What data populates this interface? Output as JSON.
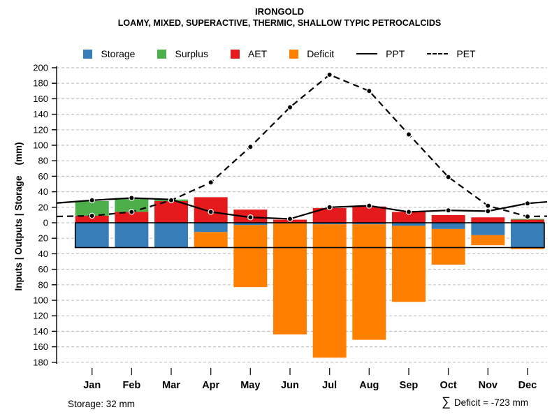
{
  "header": {
    "title": "IRONGOLD",
    "subtitle": "LOAMY, MIXED, SUPERACTIVE, THERMIC, SHALLOW TYPIC PETROCALCIDS"
  },
  "legend": {
    "items": [
      {
        "label": "Storage",
        "color": "#377EB8"
      },
      {
        "label": "Surplus",
        "color": "#4DAF4A"
      },
      {
        "label": "AET",
        "color": "#E41A1C"
      },
      {
        "label": "Deficit",
        "color": "#FF7F00"
      }
    ],
    "lines": [
      {
        "label": "PPT",
        "style": "solid"
      },
      {
        "label": "PET",
        "style": "dashed"
      }
    ]
  },
  "footer": {
    "storage_note": "Storage: 32 mm",
    "sigma": "∑",
    "deficit_note": "Deficit = -723 mm"
  },
  "chart_data": {
    "type": "bar+line water balance",
    "title": "IRONGOLD",
    "subtitle": "LOAMY, MIXED, SUPERACTIVE, THERMIC, SHALLOW TYPIC PETROCALCIDS",
    "categories": [
      "Jan",
      "Feb",
      "Mar",
      "Apr",
      "May",
      "Jun",
      "Jul",
      "Aug",
      "Sep",
      "Oct",
      "Nov",
      "Dec"
    ],
    "bar_series": [
      {
        "name": "AET",
        "color": "#E41A1C",
        "direction": "above-zero",
        "values": [
          9,
          14,
          28,
          33,
          17,
          4,
          19,
          21,
          14,
          10,
          7,
          4
        ]
      },
      {
        "name": "Surplus",
        "color": "#4DAF4A",
        "direction": "above-zero-stacked-on-AET",
        "values": [
          19,
          18,
          2,
          0,
          0,
          0,
          0,
          0,
          0,
          0,
          0,
          1
        ]
      },
      {
        "name": "Storage",
        "color": "#377EB8",
        "direction": "below-zero",
        "values": [
          32,
          32,
          32,
          12,
          3,
          1,
          2,
          2,
          4,
          8,
          16,
          32
        ]
      },
      {
        "name": "Deficit",
        "color": "#FF7F00",
        "direction": "below-zero-stacked-on-Storage",
        "values": [
          0,
          0,
          0,
          20,
          80,
          143,
          172,
          149,
          98,
          46,
          13,
          2
        ]
      }
    ],
    "line_series": [
      {
        "name": "PPT",
        "style": "solid",
        "color": "#000000",
        "values": [
          29,
          32,
          30,
          14,
          7,
          5,
          20,
          22,
          14,
          16,
          15,
          25
        ]
      },
      {
        "name": "PET",
        "style": "dashed",
        "color": "#000000",
        "values": [
          9,
          14,
          29,
          52,
          98,
          149,
          191,
          170,
          114,
          59,
          22,
          8
        ]
      }
    ],
    "ylabel": "Inputs | Outputs | Storage    (mm)",
    "ylim": [
      -180,
      200
    ],
    "y_axis_mirrored_absolute_labels": true,
    "y_tick_values": [
      200,
      180,
      160,
      140,
      120,
      100,
      80,
      60,
      40,
      20,
      0,
      -20,
      -40,
      -60,
      -80,
      -100,
      -120,
      -140,
      -160,
      -180
    ],
    "y_tick_labels": [
      "200",
      "180",
      "160",
      "140",
      "120",
      "100",
      "80",
      "60",
      "40",
      "20",
      "0",
      "20",
      "40",
      "60",
      "80",
      "100",
      "120",
      "140",
      "160",
      "180"
    ],
    "storage_box_mm": 32,
    "deficit_total_mm": -723,
    "grid": "horizontal dashed, light gray",
    "legend_position": "top center"
  }
}
